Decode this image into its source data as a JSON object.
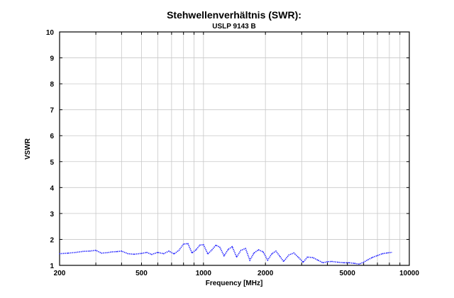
{
  "chart_data": {
    "type": "line",
    "title": "Stehwellenverhältnis (SWR):",
    "subtitle": "USLP 9143 B",
    "xlabel": "Frequency [MHz]",
    "ylabel": "VSWR",
    "xscale": "log",
    "xlim": [
      200,
      10000
    ],
    "ylim": [
      1,
      10
    ],
    "x_ticks": [
      200,
      500,
      1000,
      2000,
      5000,
      10000
    ],
    "x_tick_labels": [
      "200",
      "500",
      "1000",
      "2000",
      "5000",
      "10000"
    ],
    "x_gridlines": [
      200,
      300,
      400,
      500,
      600,
      700,
      800,
      900,
      1000,
      2000,
      3000,
      4000,
      5000,
      6000,
      7000,
      8000,
      9000,
      10000
    ],
    "y_ticks": [
      1,
      2,
      3,
      4,
      5,
      6,
      7,
      8,
      9,
      10
    ],
    "y_tick_labels": [
      "1",
      "2",
      "3",
      "4",
      "5",
      "6",
      "7",
      "8",
      "9",
      "10"
    ],
    "grid": true,
    "series_color": "#1f1fff",
    "series": [
      {
        "x": [
          200,
          220,
          240,
          260,
          280,
          300,
          320,
          340,
          360,
          380,
          400,
          430,
          460,
          500,
          530,
          560,
          600,
          640,
          680,
          720,
          760,
          800,
          840,
          880,
          920,
          960,
          1000,
          1050,
          1100,
          1150,
          1200,
          1260,
          1320,
          1380,
          1450,
          1520,
          1600,
          1680,
          1760,
          1850,
          1950,
          2050,
          2150,
          2250,
          2350,
          2450,
          2600,
          2750,
          2900,
          3050,
          3200,
          3400,
          3600,
          3800,
          4000,
          4200,
          4500,
          4800,
          5100,
          5400,
          5700,
          6000,
          6300,
          6600,
          7000,
          7400,
          7800,
          8200
        ],
        "values": [
          1.45,
          1.47,
          1.5,
          1.54,
          1.55,
          1.58,
          1.47,
          1.49,
          1.52,
          1.53,
          1.55,
          1.45,
          1.43,
          1.46,
          1.5,
          1.42,
          1.5,
          1.45,
          1.55,
          1.44,
          1.58,
          1.82,
          1.84,
          1.48,
          1.6,
          1.78,
          1.8,
          1.44,
          1.6,
          1.78,
          1.7,
          1.37,
          1.62,
          1.72,
          1.32,
          1.58,
          1.65,
          1.2,
          1.48,
          1.6,
          1.52,
          1.2,
          1.45,
          1.55,
          1.35,
          1.15,
          1.4,
          1.48,
          1.3,
          1.12,
          1.32,
          1.3,
          1.2,
          1.1,
          1.14,
          1.15,
          1.12,
          1.1,
          1.1,
          1.08,
          1.05,
          1.12,
          1.22,
          1.3,
          1.38,
          1.45,
          1.48,
          1.5
        ]
      }
    ]
  }
}
